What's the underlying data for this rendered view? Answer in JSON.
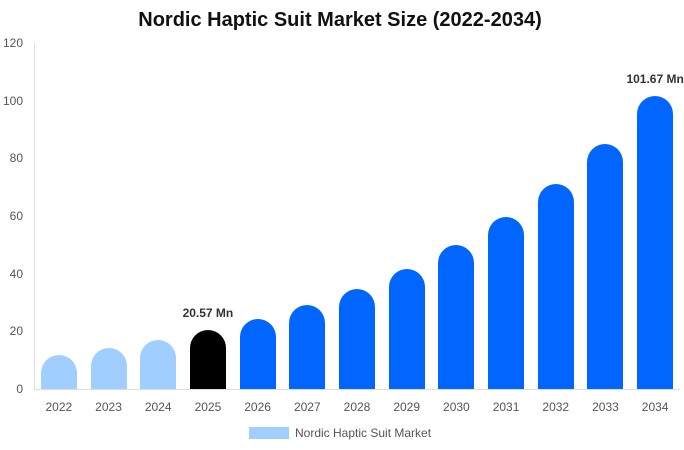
{
  "chart_data": {
    "type": "bar",
    "title": "Nordic Haptic Suit Market Size (2022-2034)",
    "xlabel": "",
    "ylabel": "",
    "ylim": [
      0,
      120
    ],
    "yticks": [
      0,
      20,
      40,
      60,
      80,
      100,
      120
    ],
    "grid": false,
    "legend_position": "bottom",
    "categories": [
      "2022",
      "2023",
      "2024",
      "2025",
      "2026",
      "2027",
      "2028",
      "2029",
      "2030",
      "2031",
      "2032",
      "2033",
      "2034"
    ],
    "series": [
      {
        "name": "Nordic Haptic Suit Market",
        "values": [
          11.8,
          14.2,
          17.0,
          20.57,
          24.3,
          29.1,
          34.7,
          41.6,
          49.9,
          59.7,
          71.1,
          85.0,
          101.67
        ]
      }
    ],
    "bar_colors": [
      "#a0cfff",
      "#a0cfff",
      "#a0cfff",
      "#000000",
      "#0066ff",
      "#0066ff",
      "#0066ff",
      "#0066ff",
      "#0066ff",
      "#0066ff",
      "#0066ff",
      "#0066ff",
      "#0066ff"
    ],
    "annotations": [
      {
        "category": "2025",
        "text": "20.57 Mn"
      },
      {
        "category": "2034",
        "text": "101.67 Mn"
      }
    ]
  },
  "legend": {
    "label": "Nordic Haptic Suit Market",
    "color": "#a0cfff"
  }
}
